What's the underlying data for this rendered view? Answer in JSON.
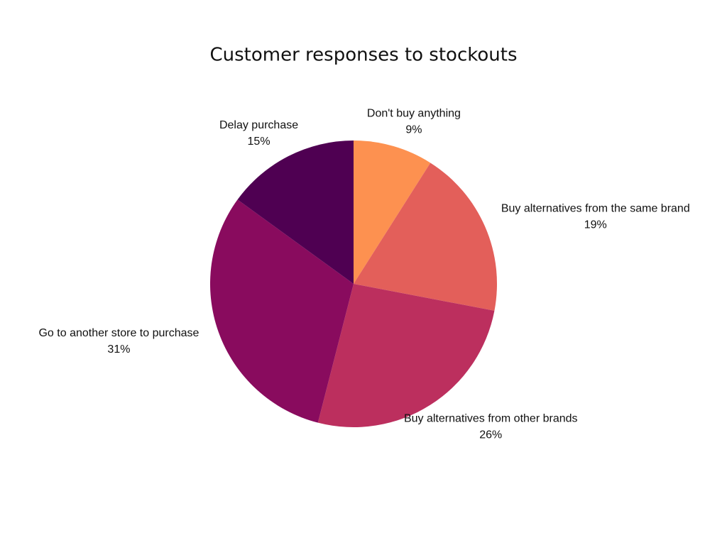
{
  "chart_data": {
    "type": "pie",
    "title": "Customer responses to stockouts",
    "categories": [
      "Don't buy anything",
      "Buy alternatives from the same brand",
      "Buy alternatives from other brands",
      "Go to another store to purchase",
      "Delay purchase"
    ],
    "values": [
      9,
      19,
      26,
      31,
      15
    ],
    "value_labels": [
      "9%",
      "19%",
      "26%",
      "31%",
      "15%"
    ],
    "colors": [
      "#fd9150",
      "#e35f5a",
      "#bc2f5e",
      "#890b5e",
      "#4f0052"
    ]
  }
}
